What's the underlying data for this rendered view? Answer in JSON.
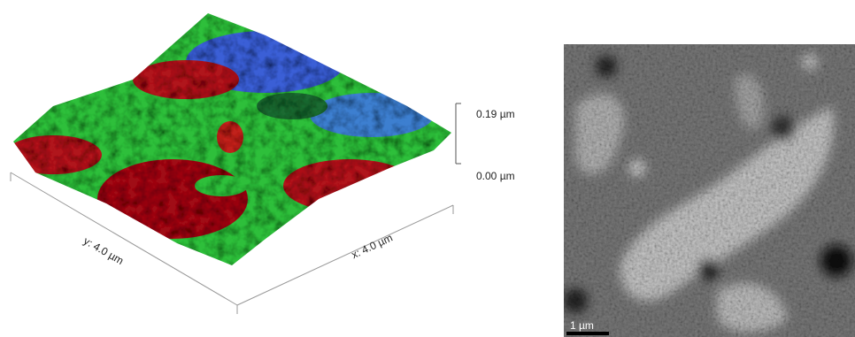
{
  "surface_plot": {
    "z_scale": {
      "top_label": "0.19 µm",
      "bottom_label": "0.00 µm"
    },
    "y_axis_label": "y: 4.0 µm",
    "x_axis_label": "x: 4.0 µm"
  },
  "micrograph": {
    "scale_bar_label": "1 µm"
  }
}
